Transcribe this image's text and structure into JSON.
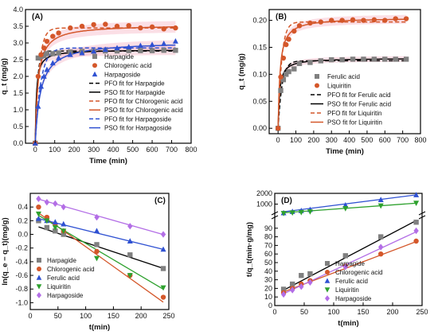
{
  "chart_data": [
    {
      "panel": "(A)",
      "type": "scatter",
      "xlabel": "Time (min)",
      "ylabel": "q_t (mg/g)",
      "xlim": [
        -50,
        800
      ],
      "ylim": [
        0,
        4
      ],
      "xticks": [
        0,
        100,
        200,
        300,
        400,
        500,
        600,
        700,
        800
      ],
      "yticks": [
        0.0,
        0.5,
        1.0,
        1.5,
        2.0,
        2.5,
        3.0,
        3.5,
        4.0
      ],
      "legend_position": "bottom-right",
      "series": [
        {
          "name": "Harpagide",
          "marker": "square",
          "color": "#808080",
          "x": [
            0,
            15,
            30,
            45,
            60,
            90,
            120,
            180,
            240,
            300,
            360,
            420,
            480,
            540,
            600,
            660,
            720
          ],
          "y": [
            0,
            2.55,
            2.6,
            2.62,
            2.68,
            2.68,
            2.7,
            2.73,
            2.75,
            2.75,
            2.76,
            2.76,
            2.77,
            2.77,
            2.77,
            2.78,
            2.78
          ]
        },
        {
          "name": "Chlorogenic acid",
          "marker": "circle",
          "color": "#d4572a",
          "x": [
            0,
            15,
            30,
            45,
            60,
            90,
            120,
            180,
            240,
            300,
            360,
            420,
            480,
            540,
            600,
            660,
            720
          ],
          "y": [
            0,
            2.0,
            2.65,
            2.85,
            3.05,
            3.2,
            3.3,
            3.45,
            3.5,
            3.55,
            3.56,
            3.5,
            3.52,
            3.45,
            3.48,
            3.42,
            3.45
          ]
        },
        {
          "name": "Harpagoside",
          "marker": "triangle",
          "color": "#2f51d2",
          "x": [
            0,
            15,
            30,
            45,
            60,
            90,
            120,
            180,
            240,
            300,
            360,
            420,
            480,
            540,
            600,
            660,
            720
          ],
          "y": [
            0,
            1.1,
            1.7,
            2.0,
            2.2,
            2.4,
            2.55,
            2.65,
            2.7,
            2.75,
            2.8,
            2.85,
            2.88,
            2.92,
            2.95,
            2.98,
            3.05
          ]
        }
      ],
      "fits": [
        {
          "name": "PFO fit for Harpagide",
          "style": "dash",
          "color": "#000000",
          "model": "pfo",
          "qe": 2.76,
          "k": 0.09
        },
        {
          "name": "PSO fit for Harpagide",
          "style": "solid",
          "color": "#000000",
          "model": "pso",
          "qe": 2.8,
          "k": 0.06
        },
        {
          "name": "PFO fit for Chlorogenic acid",
          "style": "dash",
          "color": "#d4572a",
          "model": "pfo",
          "qe": 3.45,
          "k": 0.05
        },
        {
          "name": "PSO fit for Chlorogenic acid",
          "style": "solid",
          "color": "#d4572a",
          "model": "pso",
          "qe": 3.55,
          "k": 0.02
        },
        {
          "name": "PFO fit for Harpagoside",
          "style": "dash",
          "color": "#2f51d2",
          "model": "pfo",
          "qe": 2.85,
          "k": 0.035
        },
        {
          "name": "PSO fit for Harpagoside",
          "style": "solid",
          "color": "#2f51d2",
          "model": "pso",
          "qe": 3.05,
          "k": 0.012
        }
      ]
    },
    {
      "panel": "(B)",
      "type": "scatter",
      "xlabel": "Time (min)",
      "ylabel": "q_t (mg/g)",
      "xlim": [
        -50,
        800
      ],
      "ylim": [
        -0.01,
        0.22
      ],
      "xticks": [
        0,
        100,
        200,
        300,
        400,
        500,
        600,
        700,
        800
      ],
      "yticks": [
        0.0,
        0.05,
        0.1,
        0.15,
        0.2
      ],
      "legend_position": "bottom-right",
      "series": [
        {
          "name": "Ferulic acid",
          "marker": "square",
          "color": "#808080",
          "x": [
            0,
            15,
            30,
            45,
            60,
            90,
            120,
            180,
            240,
            300,
            360,
            420,
            480,
            540,
            600,
            660,
            720
          ],
          "y": [
            0,
            0.07,
            0.09,
            0.1,
            0.105,
            0.11,
            0.12,
            0.122,
            0.125,
            0.127,
            0.127,
            0.128,
            0.128,
            0.128,
            0.128,
            0.128,
            0.128
          ]
        },
        {
          "name": "Liquiritin",
          "marker": "circle",
          "color": "#d4572a",
          "x": [
            0,
            15,
            30,
            45,
            60,
            90,
            120,
            180,
            240,
            300,
            360,
            420,
            480,
            540,
            600,
            660,
            720
          ],
          "y": [
            0,
            0.095,
            0.13,
            0.155,
            0.165,
            0.18,
            0.19,
            0.195,
            0.197,
            0.2,
            0.2,
            0.201,
            0.2,
            0.201,
            0.2,
            0.203,
            0.203
          ]
        }
      ],
      "fits": [
        {
          "name": "PFO fit for Ferulic acid",
          "style": "dash",
          "color": "#000000",
          "model": "pfo",
          "qe": 0.125,
          "k": 0.045
        },
        {
          "name": "PSO fit for Ferulic acid",
          "style": "solid",
          "color": "#000000",
          "model": "pso",
          "qe": 0.13,
          "k": 0.9
        },
        {
          "name": "PFO fit for Liquiritin",
          "style": "dash",
          "color": "#d4572a",
          "model": "pfo",
          "qe": 0.197,
          "k": 0.05
        },
        {
          "name": "PSO fit for Liquiritin",
          "style": "solid",
          "color": "#d4572a",
          "model": "pso",
          "qe": 0.205,
          "k": 0.45
        }
      ]
    },
    {
      "panel": "(C)",
      "type": "scatter",
      "xlabel": "t(min)",
      "ylabel": "ln(q_e − q_t)(mg/g)",
      "xlim": [
        0,
        250
      ],
      "ylim": [
        -1.1,
        0.6
      ],
      "xticks": [
        0,
        50,
        100,
        150,
        200,
        250
      ],
      "yticks": [
        -1.0,
        -0.8,
        -0.6,
        -0.4,
        -0.2,
        0.0,
        0.2,
        0.4
      ],
      "legend_position": "bottom-left",
      "series": [
        {
          "name": "Harpagide",
          "marker": "square",
          "color": "#808080",
          "x": [
            15,
            30,
            45,
            60,
            120,
            180,
            240
          ],
          "y": [
            0.2,
            0.1,
            0.05,
            0.0,
            -0.15,
            -0.3,
            -0.5
          ],
          "fit": [
            0.15,
            -0.0027
          ]
        },
        {
          "name": "Chlorogenic acid",
          "marker": "circle",
          "color": "#d4572a",
          "x": [
            15,
            30,
            45,
            60,
            120,
            180,
            240
          ],
          "y": [
            0.4,
            0.25,
            0.15,
            0.05,
            -0.25,
            -0.6,
            -0.92
          ],
          "fit": [
            0.4,
            -0.0058
          ]
        },
        {
          "name": "Ferulic acid",
          "marker": "triangle",
          "color": "#2f51d2",
          "x": [
            15,
            30,
            45,
            60,
            120,
            180,
            240
          ],
          "y": [
            0.23,
            0.2,
            0.18,
            0.15,
            0.05,
            -0.1,
            -0.22
          ],
          "fit": [
            0.26,
            -0.002
          ]
        },
        {
          "name": "Liquiritin",
          "marker": "triangle-down",
          "color": "#2ea12e",
          "x": [
            15,
            30,
            45,
            60,
            120,
            180,
            240
          ],
          "y": [
            0.3,
            0.2,
            0.1,
            0.05,
            -0.35,
            -0.6,
            -0.78
          ],
          "fit": [
            0.35,
            -0.0048
          ]
        },
        {
          "name": "Harpagoside",
          "marker": "diamond",
          "color": "#b36ee6",
          "x": [
            15,
            30,
            45,
            60,
            120,
            180,
            240
          ],
          "y": [
            0.52,
            0.47,
            0.45,
            0.4,
            0.25,
            0.12,
            0.0
          ],
          "fit": [
            0.55,
            -0.0023
          ]
        }
      ]
    },
    {
      "panel": "(D)",
      "type": "scatter",
      "xlabel": "t(min)",
      "ylabel": "t/q_t(min·g/mg)",
      "xlim": [
        0,
        250
      ],
      "lower_ylim": [
        0,
        100
      ],
      "upper_ylim": [
        0,
        2000
      ],
      "xticks": [
        0,
        50,
        100,
        150,
        200,
        250
      ],
      "lower_yticks": [
        0,
        10,
        20,
        30,
        40,
        50,
        60,
        70,
        80,
        90
      ],
      "upper_yticks": [
        1000,
        2000
      ],
      "legend_position": "bottom-right",
      "broken_axis": true,
      "series": [
        {
          "name": "Harpagide",
          "marker": "square",
          "color": "#808080",
          "axis": "lower",
          "x": [
            15,
            30,
            45,
            60,
            120,
            180,
            240
          ],
          "y": [
            19,
            25,
            35,
            37,
            58,
            80,
            97
          ],
          "fit": [
            12.5,
            0.36
          ]
        },
        {
          "name": "Chlorogenic acid",
          "marker": "circle",
          "color": "#d4572a",
          "axis": "lower",
          "x": [
            15,
            30,
            45,
            60,
            120,
            180,
            240
          ],
          "y": [
            15,
            20,
            25,
            29,
            46,
            60,
            75
          ],
          "fit": [
            12,
            0.26
          ]
        },
        {
          "name": "Ferulic acid",
          "marker": "triangle",
          "color": "#2f51d2",
          "axis": "upper",
          "x": [
            15,
            30,
            45,
            60,
            120,
            180,
            240
          ],
          "y": [
            180,
            300,
            380,
            480,
            900,
            1400,
            1850
          ],
          "fit": [
            180,
            7.0
          ]
        },
        {
          "name": "Liquiritin",
          "marker": "triangle-down",
          "color": "#2ea12e",
          "axis": "upper",
          "x": [
            15,
            30,
            45,
            60,
            120,
            180,
            240
          ],
          "y": [
            150,
            200,
            240,
            300,
            600,
            850,
            1100
          ],
          "fit": [
            130,
            4.0
          ]
        },
        {
          "name": "Harpagoside",
          "marker": "diamond",
          "color": "#b36ee6",
          "axis": "lower",
          "x": [
            15,
            30,
            45,
            60,
            120,
            180,
            240
          ],
          "y": [
            13,
            18,
            22,
            27,
            45,
            68,
            87
          ],
          "fit": [
            9,
            0.32
          ]
        }
      ]
    }
  ]
}
